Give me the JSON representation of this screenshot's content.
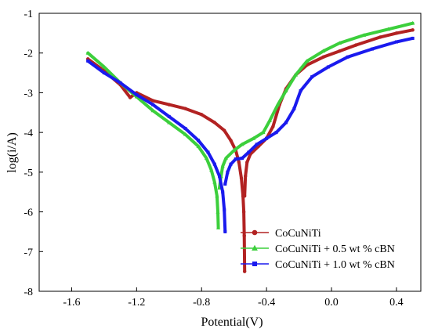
{
  "chart_data": {
    "type": "line",
    "title": "",
    "xlabel": "Potential(V)",
    "ylabel": "log(i/A)",
    "xlim": [
      -1.8,
      0.55
    ],
    "ylim": [
      -8,
      -1
    ],
    "xticks": [
      -1.6,
      -1.2,
      -0.8,
      -0.4,
      0.0,
      0.4
    ],
    "xtick_labels": [
      "-1.6",
      "-1.2",
      "-0.8",
      "-0.4",
      "0.0",
      "0.4"
    ],
    "yticks": [
      -8,
      -7,
      -6,
      -5,
      -4,
      -3,
      -2,
      -1
    ],
    "ytick_labels": [
      "-8",
      "-7",
      "-6",
      "-5",
      "-4",
      "-3",
      "-2",
      "-1"
    ],
    "grid": false,
    "legend_position": "bottom-right",
    "series": [
      {
        "name": "CoCuNiTi",
        "color": "#b22222",
        "marker": "circle",
        "segments": [
          [
            [
              -1.5,
              -2.15
            ],
            [
              -1.4,
              -2.45
            ],
            [
              -1.3,
              -2.8
            ],
            [
              -1.24,
              -3.12
            ],
            [
              -1.2,
              -3.0
            ],
            [
              -1.1,
              -3.2
            ],
            [
              -1.0,
              -3.3
            ],
            [
              -0.9,
              -3.4
            ],
            [
              -0.8,
              -3.55
            ],
            [
              -0.72,
              -3.75
            ],
            [
              -0.66,
              -3.95
            ],
            [
              -0.62,
              -4.2
            ],
            [
              -0.59,
              -4.45
            ],
            [
              -0.57,
              -4.75
            ],
            [
              -0.555,
              -5.15
            ],
            [
              -0.545,
              -5.6
            ],
            [
              -0.54,
              -6.0
            ],
            [
              -0.537,
              -6.6
            ],
            [
              -0.535,
              -7.5
            ]
          ],
          [
            [
              -0.535,
              -5.6
            ],
            [
              -0.53,
              -5.1
            ],
            [
              -0.52,
              -4.75
            ],
            [
              -0.5,
              -4.55
            ],
            [
              -0.45,
              -4.35
            ],
            [
              -0.4,
              -4.15
            ],
            [
              -0.36,
              -3.85
            ],
            [
              -0.32,
              -3.3
            ],
            [
              -0.28,
              -2.9
            ],
            [
              -0.22,
              -2.55
            ],
            [
              -0.15,
              -2.3
            ],
            [
              -0.05,
              -2.1
            ],
            [
              0.05,
              -1.95
            ],
            [
              0.15,
              -1.8
            ],
            [
              0.3,
              -1.6
            ],
            [
              0.4,
              -1.5
            ],
            [
              0.5,
              -1.42
            ]
          ]
        ]
      },
      {
        "name": "CoCuNiTi + 0.5 wt % cBN",
        "color": "#3ccf3c",
        "marker": "triangle",
        "segments": [
          [
            [
              -1.5,
              -2.0
            ],
            [
              -1.4,
              -2.35
            ],
            [
              -1.3,
              -2.75
            ],
            [
              -1.2,
              -3.1
            ],
            [
              -1.1,
              -3.45
            ],
            [
              -1.0,
              -3.75
            ],
            [
              -0.9,
              -4.05
            ],
            [
              -0.82,
              -4.35
            ],
            [
              -0.77,
              -4.65
            ],
            [
              -0.74,
              -4.95
            ],
            [
              -0.72,
              -5.25
            ],
            [
              -0.705,
              -5.6
            ],
            [
              -0.7,
              -6.0
            ],
            [
              -0.697,
              -6.4
            ]
          ],
          [
            [
              -0.69,
              -5.4
            ],
            [
              -0.68,
              -5.1
            ],
            [
              -0.67,
              -4.85
            ],
            [
              -0.65,
              -4.65
            ],
            [
              -0.6,
              -4.45
            ],
            [
              -0.55,
              -4.3
            ],
            [
              -0.48,
              -4.15
            ],
            [
              -0.42,
              -4.0
            ],
            [
              -0.38,
              -3.7
            ],
            [
              -0.33,
              -3.3
            ],
            [
              -0.28,
              -2.95
            ],
            [
              -0.22,
              -2.55
            ],
            [
              -0.15,
              -2.2
            ],
            [
              -0.05,
              -1.95
            ],
            [
              0.05,
              -1.75
            ],
            [
              0.2,
              -1.55
            ],
            [
              0.35,
              -1.4
            ],
            [
              0.5,
              -1.25
            ]
          ]
        ]
      },
      {
        "name": "CoCuNiTi + 1.0 wt % cBN",
        "color": "#1a1aee",
        "marker": "square",
        "segments": [
          [
            [
              -1.5,
              -2.2
            ],
            [
              -1.4,
              -2.5
            ],
            [
              -1.3,
              -2.75
            ],
            [
              -1.2,
              -3.05
            ],
            [
              -1.1,
              -3.3
            ],
            [
              -1.0,
              -3.6
            ],
            [
              -0.9,
              -3.9
            ],
            [
              -0.82,
              -4.2
            ],
            [
              -0.76,
              -4.5
            ],
            [
              -0.72,
              -4.8
            ],
            [
              -0.69,
              -5.1
            ],
            [
              -0.67,
              -5.5
            ],
            [
              -0.66,
              -5.95
            ],
            [
              -0.655,
              -6.5
            ]
          ],
          [
            [
              -0.655,
              -5.3
            ],
            [
              -0.64,
              -5.0
            ],
            [
              -0.62,
              -4.8
            ],
            [
              -0.59,
              -4.67
            ],
            [
              -0.55,
              -4.65
            ],
            [
              -0.51,
              -4.5
            ],
            [
              -0.46,
              -4.3
            ],
            [
              -0.4,
              -4.15
            ],
            [
              -0.34,
              -4.0
            ],
            [
              -0.28,
              -3.75
            ],
            [
              -0.23,
              -3.4
            ],
            [
              -0.19,
              -2.95
            ],
            [
              -0.12,
              -2.6
            ],
            [
              -0.02,
              -2.35
            ],
            [
              0.1,
              -2.1
            ],
            [
              0.25,
              -1.9
            ],
            [
              0.4,
              -1.72
            ],
            [
              0.5,
              -1.63
            ]
          ]
        ]
      }
    ]
  }
}
